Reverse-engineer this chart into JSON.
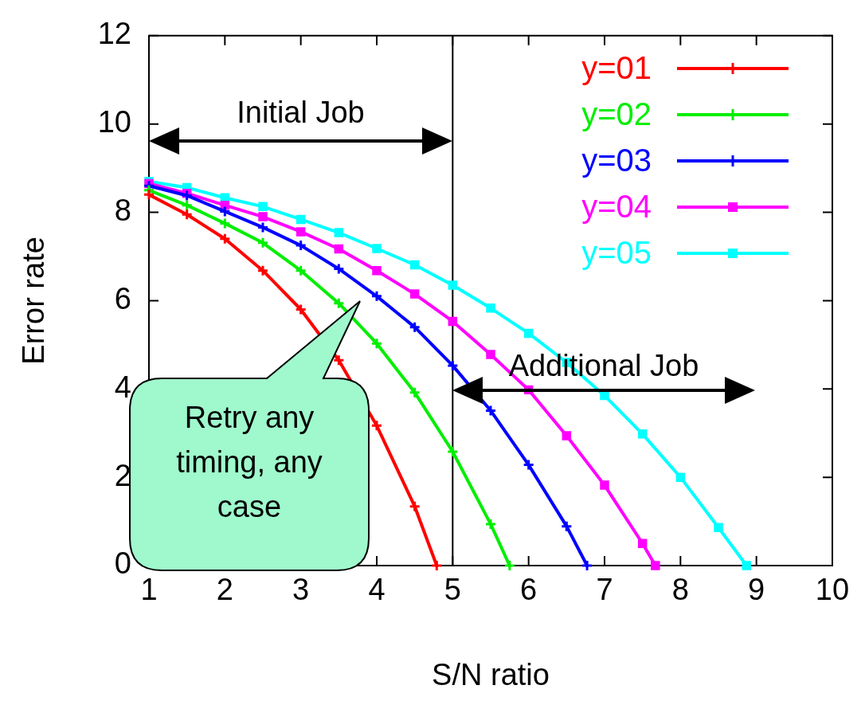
{
  "chart_data": {
    "type": "line",
    "xlabel": "S/N ratio",
    "ylabel": "Error rate",
    "xlim": [
      1,
      10
    ],
    "xticks": [
      1,
      2,
      3,
      4,
      5,
      6,
      7,
      8,
      9,
      10
    ],
    "ylim": [
      0,
      12
    ],
    "yticks": [
      0,
      2,
      4,
      6,
      8,
      10,
      12
    ],
    "grid": false,
    "legend": "top right",
    "line_style": "solid",
    "series": [
      {
        "name": "y=01",
        "color": "#ff0000",
        "marker": "cross",
        "x": [
          1,
          1.5,
          2,
          2.5,
          3,
          3.5,
          4,
          4.5,
          4.79
        ],
        "values": [
          8.4,
          7.95,
          7.4,
          6.68,
          5.8,
          4.65,
          3.17,
          1.34,
          0
        ]
      },
      {
        "name": "y=02",
        "color": "#00ee00",
        "marker": "cross",
        "x": [
          1,
          1.5,
          2,
          2.5,
          3,
          3.5,
          4,
          4.5,
          5,
          5.5,
          5.75
        ],
        "values": [
          8.5,
          8.16,
          7.75,
          7.31,
          6.68,
          5.94,
          5.03,
          3.92,
          2.58,
          0.94,
          0
        ]
      },
      {
        "name": "y=03",
        "color": "#0000ff",
        "marker": "cross",
        "x": [
          1,
          1.5,
          2,
          2.5,
          3,
          3.5,
          4,
          4.5,
          5,
          5.5,
          6,
          6.5,
          6.77
        ],
        "values": [
          8.6,
          8.38,
          8.02,
          7.66,
          7.25,
          6.72,
          6.1,
          5.4,
          4.53,
          3.51,
          2.28,
          0.89,
          0
        ]
      },
      {
        "name": "y=04",
        "color": "#ff00ff",
        "marker": "square",
        "x": [
          1,
          1.5,
          2,
          2.5,
          3,
          3.5,
          4,
          4.5,
          5,
          5.5,
          6,
          6.5,
          7,
          7.5,
          7.67
        ],
        "values": [
          8.65,
          8.43,
          8.16,
          7.9,
          7.56,
          7.17,
          6.68,
          6.15,
          5.53,
          4.78,
          3.98,
          2.94,
          1.82,
          0.5,
          0
        ]
      },
      {
        "name": "y=05",
        "color": "#00ffff",
        "marker": "square",
        "x": [
          1,
          1.5,
          2,
          2.5,
          3,
          3.5,
          4,
          4.5,
          5,
          5.5,
          6,
          6.5,
          7,
          7.5,
          8,
          8.5,
          8.87
        ],
        "values": [
          8.7,
          8.56,
          8.33,
          8.13,
          7.84,
          7.54,
          7.18,
          6.81,
          6.35,
          5.83,
          5.26,
          4.6,
          3.85,
          2.98,
          2.0,
          0.86,
          0
        ]
      }
    ],
    "ref_lines": [
      {
        "axis": "x",
        "value": 5,
        "color": "#000000",
        "line_style": "solid"
      }
    ],
    "annotations": [
      "Initial Job",
      "Additional Job",
      "Retry any timing, any case"
    ]
  }
}
